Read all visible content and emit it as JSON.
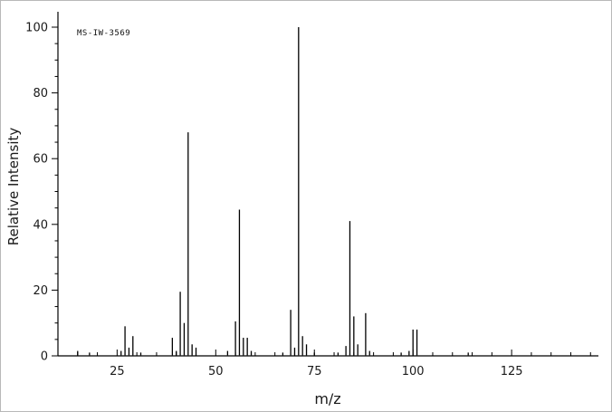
{
  "chart": {
    "watermark": "MS-IW-3569",
    "xlabel": "m/z",
    "ylabel": "Relative Intensity"
  },
  "chart_data": {
    "type": "bar",
    "title": "MS-IW-3569",
    "xlabel": "m/z",
    "ylabel": "Relative Intensity",
    "xlim": [
      10,
      147
    ],
    "ylim": [
      0,
      100
    ],
    "x_major_ticks": [
      25,
      50,
      75,
      100,
      125
    ],
    "x_minor_step": 5,
    "y_major_ticks": [
      0,
      20,
      40,
      60,
      80,
      100
    ],
    "y_minor_step": 5,
    "grid": false,
    "legend": "none",
    "peaks": [
      [
        15,
        1.5
      ],
      [
        18,
        1.0
      ],
      [
        26,
        1.5
      ],
      [
        27,
        9.0
      ],
      [
        28,
        2.5
      ],
      [
        29,
        6.0
      ],
      [
        31,
        1.0
      ],
      [
        39,
        5.5
      ],
      [
        40,
        1.5
      ],
      [
        41,
        19.5
      ],
      [
        42,
        10.0
      ],
      [
        43,
        68.0
      ],
      [
        44,
        3.5
      ],
      [
        45,
        2.5
      ],
      [
        53,
        1.5
      ],
      [
        55,
        10.5
      ],
      [
        56,
        44.5
      ],
      [
        57,
        5.5
      ],
      [
        58,
        5.5
      ],
      [
        59,
        1.5
      ],
      [
        67,
        1.0
      ],
      [
        69,
        14.0
      ],
      [
        70,
        2.5
      ],
      [
        71,
        100.0
      ],
      [
        72,
        6.0
      ],
      [
        73,
        3.5
      ],
      [
        75,
        1.0
      ],
      [
        81,
        1.0
      ],
      [
        83,
        3.0
      ],
      [
        84,
        41.0
      ],
      [
        85,
        12.0
      ],
      [
        86,
        3.5
      ],
      [
        88,
        13.0
      ],
      [
        89,
        1.5
      ],
      [
        97,
        1.0
      ],
      [
        99,
        1.5
      ],
      [
        100,
        8.0
      ],
      [
        101,
        8.0
      ],
      [
        114,
        1.0
      ]
    ]
  }
}
